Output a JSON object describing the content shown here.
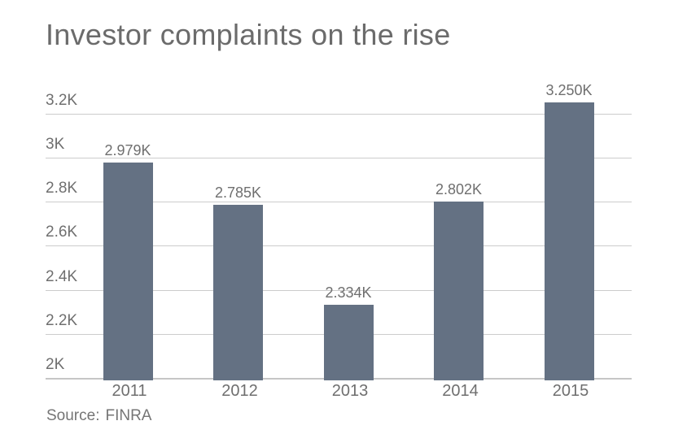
{
  "title": "Investor complaints on the rise",
  "source": {
    "label": "Source:",
    "value": "FINRA"
  },
  "chart_data": {
    "type": "bar",
    "title": "Investor complaints on the rise",
    "categories": [
      "2011",
      "2012",
      "2013",
      "2014",
      "2015"
    ],
    "values": [
      2979,
      2785,
      2334,
      2802,
      3250
    ],
    "data_labels": [
      "2.979K",
      "2.785K",
      "2.334K",
      "2.802K",
      "3.250K"
    ],
    "yticks": {
      "values": [
        3200,
        3000,
        2800,
        2600,
        2400,
        2200,
        2000
      ],
      "labels": [
        "3.2K",
        "3K",
        "2.8K",
        "2.6K",
        "2.4K",
        "2.2K",
        "2K"
      ]
    },
    "ylim": [
      2000,
      3300
    ],
    "xlabel": "",
    "ylabel": "",
    "legend": "none",
    "grid": true,
    "source_text": "Source: FINRA",
    "colors": {
      "bar": "#647183",
      "gridline": "#cccccc",
      "axis_line": "#c6c6c6",
      "title_text": "#6b6b6b",
      "tick_text": "#6f6f6f",
      "source_text": "#757575",
      "background": "#ffffff"
    }
  }
}
